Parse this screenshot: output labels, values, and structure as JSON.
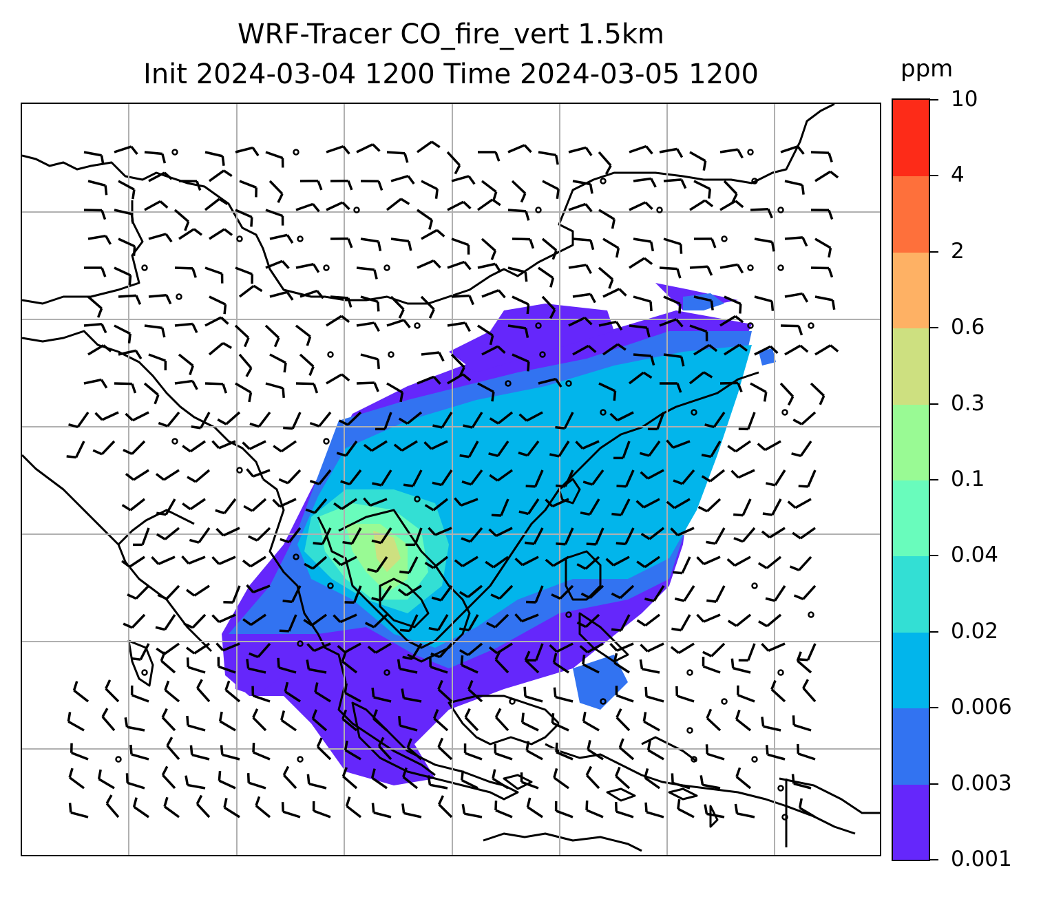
{
  "title": {
    "line1": "WRF-Tracer CO_fire_vert 1.5km",
    "line2": "Init 2024-03-04 1200 Time 2024-03-05 1200"
  },
  "colorbar": {
    "unit": "ppm",
    "levels": [
      "0.001",
      "0.003",
      "0.006",
      "0.02",
      "0.04",
      "0.1",
      "0.3",
      "0.6",
      "2",
      "4",
      "10"
    ],
    "colors": [
      "#6527fb",
      "#3273f1",
      "#02b5eb",
      "#33dfd4",
      "#69fcbc",
      "#99fa94",
      "#cde080",
      "#feb164",
      "#fe703b",
      "#fd2b18"
    ]
  },
  "map": {
    "gridlines": true,
    "coastlines": true,
    "wind_barbs": true
  }
}
